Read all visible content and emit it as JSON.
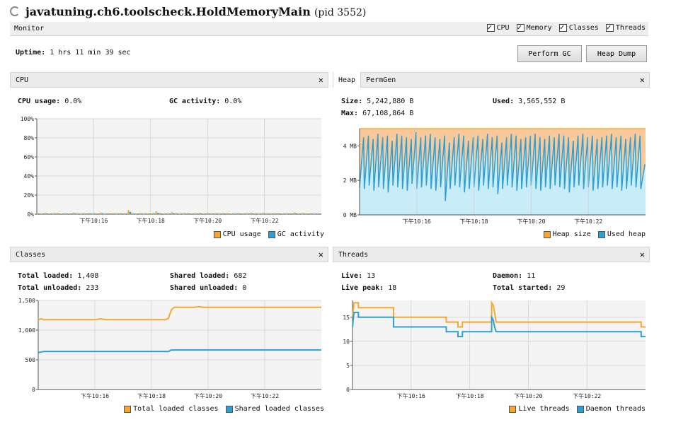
{
  "window": {
    "title": "javatuning.ch6.toolscheck.HoldMemoryMain",
    "pid": "(pid 3552)"
  },
  "monitor": {
    "label": "Monitor",
    "toggles": [
      {
        "label": "CPU",
        "checked": true
      },
      {
        "label": "Memory",
        "checked": true
      },
      {
        "label": "Classes",
        "checked": true
      },
      {
        "label": "Threads",
        "checked": true
      }
    ],
    "uptime_label": "Uptime:",
    "uptime_value": "1 hrs 11 min 39 sec",
    "perform_gc": "Perform GC",
    "heap_dump": "Heap Dump"
  },
  "colors": {
    "orange": "#f5a732",
    "blue": "#2f9fd2",
    "heap_fill": "#f8c99a",
    "used_fill": "#c8ecf8",
    "grid": "#d8d8d8"
  },
  "cpu_panel": {
    "title": "CPU",
    "close": "✕",
    "cpu_usage_label": "CPU usage:",
    "cpu_usage_value": "0.0%",
    "gc_label": "GC activity:",
    "gc_value": "0.0%",
    "legend": [
      "CPU usage",
      "GC activity"
    ],
    "chart_data": {
      "type": "bar",
      "y_ticks": [
        "100%",
        "80%",
        "60%",
        "40%",
        "20%",
        "0%"
      ],
      "x_ticks": [
        "下午10:16",
        "下午10:18",
        "下午10:20",
        "下午10:22"
      ],
      "ylim": [
        0,
        100
      ],
      "series": [
        {
          "name": "CPU usage",
          "values": [
            1.2,
            0.8,
            1.5,
            0.9,
            1.0,
            1.3,
            0.7,
            1.1,
            0.9,
            1.6,
            1.0,
            0.8,
            1.2,
            1.4,
            0.9,
            1.0,
            1.7,
            0.8,
            1.1,
            1.2,
            0.9,
            1.3,
            1.0,
            4.2,
            1.1,
            0.9,
            1.2,
            0.8,
            1.0,
            1.1,
            2.9,
            1.4,
            0.9,
            1.0,
            2.0,
            1.2,
            0.8,
            1.1,
            1.3,
            0.9,
            1.0,
            1.5,
            0.8,
            1.2,
            1.0,
            1.1,
            0.9,
            1.4,
            1.2,
            0.8,
            1.0,
            1.3,
            0.9,
            1.1,
            1.6,
            1.0,
            0.8,
            1.2,
            1.0,
            0.9,
            1.1,
            1.3,
            0.8,
            1.0,
            1.2,
            1.8,
            0.9,
            1.1,
            1.0,
            1.2,
            0.8,
            1.0
          ]
        },
        {
          "name": "GC activity",
          "values": [
            0.6,
            0.4,
            0.8,
            0.5,
            0.6,
            0.7,
            0.4,
            0.6,
            0.5,
            0.9,
            0.6,
            0.4,
            0.7,
            0.8,
            0.5,
            0.6,
            0.9,
            0.4,
            0.6,
            0.7,
            0.5,
            0.8,
            0.6,
            2.4,
            0.6,
            0.5,
            0.7,
            0.4,
            0.6,
            0.6,
            1.6,
            0.8,
            0.5,
            0.6,
            1.1,
            0.7,
            0.4,
            0.6,
            0.8,
            0.5,
            0.6,
            0.9,
            0.4,
            0.7,
            0.6,
            0.6,
            0.5,
            0.8,
            0.7,
            0.4,
            0.6,
            0.8,
            0.5,
            0.6,
            0.9,
            0.6,
            0.4,
            0.7,
            0.6,
            0.5,
            0.6,
            0.8,
            0.4,
            0.6,
            0.7,
            1.0,
            0.5,
            0.6,
            0.6,
            0.7,
            0.4,
            0.6
          ]
        }
      ]
    }
  },
  "heap_panel": {
    "tabs": [
      "Heap",
      "PermGen"
    ],
    "close": "✕",
    "size_label": "Size:",
    "size_value": "5,242,880 B",
    "used_label": "Used:",
    "used_value": "3,565,552 B",
    "max_label": "Max:",
    "max_value": "67,108,864 B",
    "legend": [
      "Heap size",
      "Used heap"
    ],
    "chart_data": {
      "type": "area",
      "y_ticks": [
        {
          "label": "4 MB",
          "v": 4
        },
        {
          "label": "2 MB",
          "v": 2
        },
        {
          "label": "0 MB",
          "v": 0
        }
      ],
      "x_ticks": [
        "下午10:16",
        "下午10:18",
        "下午10:20",
        "下午10:22"
      ],
      "ylim": [
        0,
        5
      ],
      "heap_size": 5.0,
      "used_low": [
        1.6,
        1.5,
        1.7,
        1.4,
        1.6,
        1.5,
        1.3,
        1.7,
        1.6,
        1.5,
        1.4,
        1.8,
        1.5,
        1.6,
        1.7,
        1.5,
        1.4,
        1.6,
        0.8,
        1.5,
        1.7,
        1.6,
        1.3,
        1.5,
        1.6,
        1.4,
        1.7,
        1.5,
        1.6,
        1.2,
        1.5,
        1.7,
        1.6,
        1.4,
        1.5,
        1.6,
        1.7,
        1.5,
        1.4,
        1.6,
        1.5,
        1.7,
        1.6,
        1.5,
        1.3,
        1.6,
        1.7,
        1.5,
        1.6,
        1.4,
        1.5,
        1.6,
        1.7,
        1.5,
        1.6,
        1.4,
        1.5,
        1.7,
        1.6,
        1.5
      ],
      "used_high": [
        4.5,
        4.6,
        4.4,
        4.7,
        4.5,
        4.6,
        4.3,
        4.7,
        4.6,
        4.5,
        4.4,
        4.8,
        4.5,
        4.6,
        4.7,
        4.5,
        4.4,
        4.6,
        4.2,
        4.5,
        4.7,
        4.6,
        4.3,
        4.5,
        4.6,
        4.4,
        4.7,
        4.5,
        4.6,
        4.2,
        4.5,
        4.7,
        4.6,
        4.4,
        4.5,
        4.6,
        4.7,
        4.5,
        4.4,
        4.6,
        4.5,
        4.7,
        4.6,
        4.5,
        4.3,
        4.6,
        4.7,
        4.5,
        4.6,
        4.4,
        4.5,
        4.6,
        4.7,
        4.5,
        4.6,
        4.4,
        4.5,
        4.7,
        4.6,
        2.9
      ]
    }
  },
  "classes_panel": {
    "title": "Classes",
    "close": "✕",
    "total_loaded_label": "Total loaded:",
    "total_loaded_value": "1,408",
    "total_unloaded_label": "Total unloaded:",
    "total_unloaded_value": "233",
    "shared_loaded_label": "Shared loaded:",
    "shared_loaded_value": "682",
    "shared_unloaded_label": "Shared unloaded:",
    "shared_unloaded_value": "0",
    "legend": [
      "Total loaded classes",
      "Shared loaded classes"
    ],
    "chart_data": {
      "type": "line",
      "y_ticks": [
        {
          "label": "1,500",
          "v": 1500
        },
        {
          "label": "1,000",
          "v": 1000
        },
        {
          "label": "500",
          "v": 500
        },
        {
          "label": "0",
          "v": 0
        }
      ],
      "x_ticks": [
        "下午10:16",
        "下午10:18",
        "下午10:20",
        "下午10:22"
      ],
      "ylim": [
        0,
        1500
      ],
      "series": [
        {
          "name": "Total loaded classes",
          "points": [
            [
              0,
              1170
            ],
            [
              0.01,
              1190
            ],
            [
              0.02,
              1175
            ],
            [
              0.2,
              1175
            ],
            [
              0.22,
              1190
            ],
            [
              0.24,
              1175
            ],
            [
              0.45,
              1175
            ],
            [
              0.46,
              1200
            ],
            [
              0.47,
              1340
            ],
            [
              0.48,
              1385
            ],
            [
              0.55,
              1385
            ],
            [
              0.57,
              1395
            ],
            [
              0.58,
              1385
            ],
            [
              1,
              1385
            ]
          ]
        },
        {
          "name": "Shared loaded classes",
          "points": [
            [
              0,
              620
            ],
            [
              0.02,
              640
            ],
            [
              0.46,
              640
            ],
            [
              0.47,
              665
            ],
            [
              1,
              665
            ]
          ]
        }
      ]
    }
  },
  "threads_panel": {
    "title": "Threads",
    "close": "✕",
    "live_label": "Live:",
    "live_value": "13",
    "live_peak_label": "Live peak:",
    "live_peak_value": "18",
    "daemon_label": "Daemon:",
    "daemon_value": "11",
    "total_started_label": "Total started:",
    "total_started_value": "29",
    "legend": [
      "Live threads",
      "Daemon threads"
    ],
    "chart_data": {
      "type": "line",
      "y_ticks": [
        {
          "label": "15",
          "v": 15
        },
        {
          "label": "10",
          "v": 10
        },
        {
          "label": "5",
          "v": 5
        },
        {
          "label": "0",
          "v": 0
        }
      ],
      "x_ticks": [
        "下午10:16",
        "下午10:18",
        "下午10:20",
        "下午10:22"
      ],
      "ylim": [
        0,
        18.5
      ],
      "series": [
        {
          "name": "Live threads",
          "points": [
            [
              0,
              15
            ],
            [
              0.005,
              18
            ],
            [
              0.02,
              18
            ],
            [
              0.02,
              17
            ],
            [
              0.14,
              17
            ],
            [
              0.14,
              15
            ],
            [
              0.32,
              15
            ],
            [
              0.32,
              14
            ],
            [
              0.36,
              14
            ],
            [
              0.36,
              13
            ],
            [
              0.375,
              13
            ],
            [
              0.375,
              14
            ],
            [
              0.475,
              14
            ],
            [
              0.475,
              18
            ],
            [
              0.48,
              17.5
            ],
            [
              0.485,
              16
            ],
            [
              0.49,
              14
            ],
            [
              0.985,
              14
            ],
            [
              0.985,
              13
            ],
            [
              1,
              13
            ]
          ]
        },
        {
          "name": "Daemon threads",
          "points": [
            [
              0,
              13
            ],
            [
              0.005,
              16
            ],
            [
              0.02,
              16
            ],
            [
              0.02,
              15
            ],
            [
              0.14,
              15
            ],
            [
              0.14,
              13
            ],
            [
              0.32,
              13
            ],
            [
              0.32,
              12
            ],
            [
              0.36,
              12
            ],
            [
              0.36,
              11
            ],
            [
              0.375,
              11
            ],
            [
              0.375,
              12
            ],
            [
              0.475,
              12
            ],
            [
              0.475,
              15
            ],
            [
              0.48,
              14.5
            ],
            [
              0.485,
              13
            ],
            [
              0.49,
              12
            ],
            [
              0.985,
              12
            ],
            [
              0.985,
              11
            ],
            [
              1,
              11
            ]
          ]
        }
      ]
    }
  }
}
